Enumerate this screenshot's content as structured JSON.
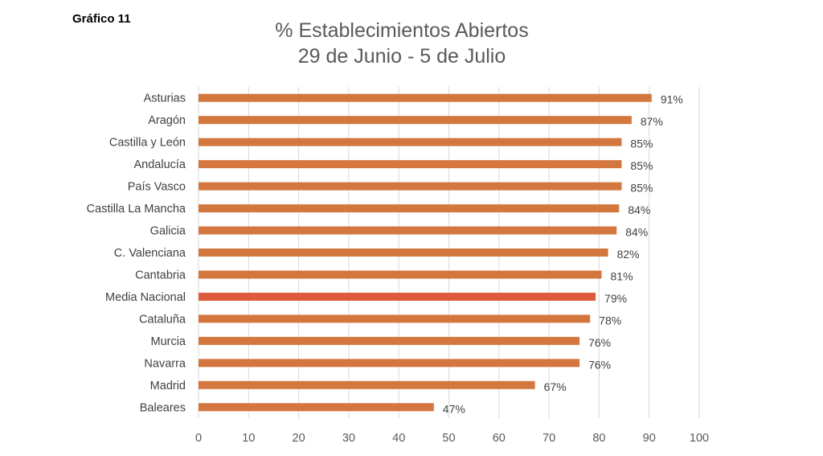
{
  "label": "Gráfico 11",
  "chart_data": {
    "type": "bar",
    "orientation": "horizontal",
    "title": [
      "% Establecimientos Abiertos",
      "29 de Junio - 5 de Julio"
    ],
    "categories": [
      "Asturias",
      "Aragón",
      "Castilla y León",
      "Andalucía",
      "País Vasco",
      "Castilla La Mancha",
      "Galicia",
      "C. Valenciana",
      "Cantabria",
      "Media Nacional",
      "Cataluña",
      "Murcia",
      "Navarra",
      "Madrid",
      "Baleares"
    ],
    "values": [
      90.5,
      86.5,
      84.5,
      84.5,
      84.5,
      84,
      83.5,
      81.8,
      80.5,
      79.3,
      78.2,
      76.1,
      76.1,
      67.2,
      47
    ],
    "data_labels": [
      "91%",
      "87%",
      "85%",
      "85%",
      "85%",
      "84%",
      "84%",
      "82%",
      "81%",
      "79%",
      "78%",
      "76%",
      "76%",
      "67%",
      "47%"
    ],
    "highlight_index": 9,
    "xlim": [
      0,
      100
    ],
    "xticks": [
      0,
      10,
      20,
      30,
      40,
      50,
      60,
      70,
      80,
      90,
      100
    ],
    "grid": "vertical",
    "colors": {
      "bar": "#D4773E",
      "highlight": "#DE5A3C",
      "grid": "#D9D9D9"
    }
  }
}
